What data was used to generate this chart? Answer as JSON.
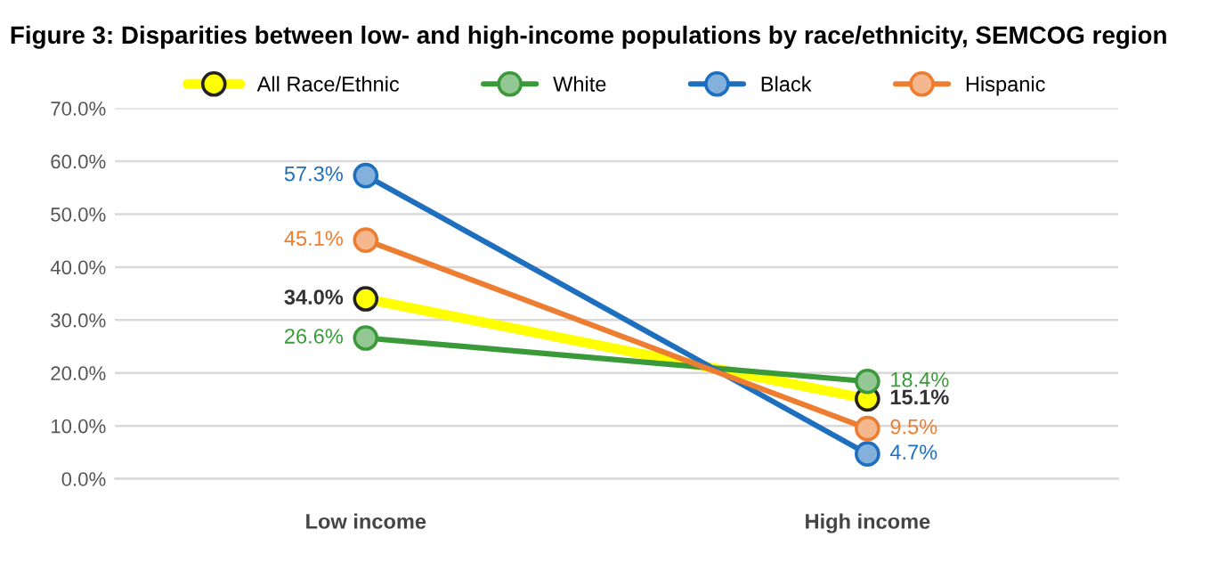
{
  "chart_data": {
    "type": "line",
    "title": "Figure 3: Disparities between low- and high-income populations by race/ethnicity, SEMCOG region",
    "categories": [
      "Low income",
      "High income"
    ],
    "series": [
      {
        "name": "All Race/Ethnic",
        "color": "#ffff00",
        "values": [
          34.0,
          15.1
        ],
        "value_labels": [
          "34.0%",
          "15.1%"
        ]
      },
      {
        "name": "White",
        "color": "#3a9a3a",
        "values": [
          26.6,
          18.4
        ],
        "value_labels": [
          "26.6%",
          "18.4%"
        ]
      },
      {
        "name": "Black",
        "color": "#1f6fbf",
        "values": [
          57.3,
          4.7
        ],
        "value_labels": [
          "57.3%",
          "4.7%"
        ]
      },
      {
        "name": "Hispanic",
        "color": "#ed7d31",
        "values": [
          45.1,
          9.5
        ],
        "value_labels": [
          "45.1%",
          "9.5%"
        ]
      }
    ],
    "ylim": [
      0,
      70
    ],
    "yticks": [
      {
        "value": 0,
        "label": "0.0%"
      },
      {
        "value": 10,
        "label": "10.0%"
      },
      {
        "value": 20,
        "label": "20.0%"
      },
      {
        "value": 30,
        "label": "30.0%"
      },
      {
        "value": 40,
        "label": "40.0%"
      },
      {
        "value": 50,
        "label": "50.0%"
      },
      {
        "value": 60,
        "label": "60.0%"
      },
      {
        "value": 70,
        "label": "70.0%"
      }
    ],
    "grid": "y",
    "legend": "top",
    "marker": "circle"
  }
}
